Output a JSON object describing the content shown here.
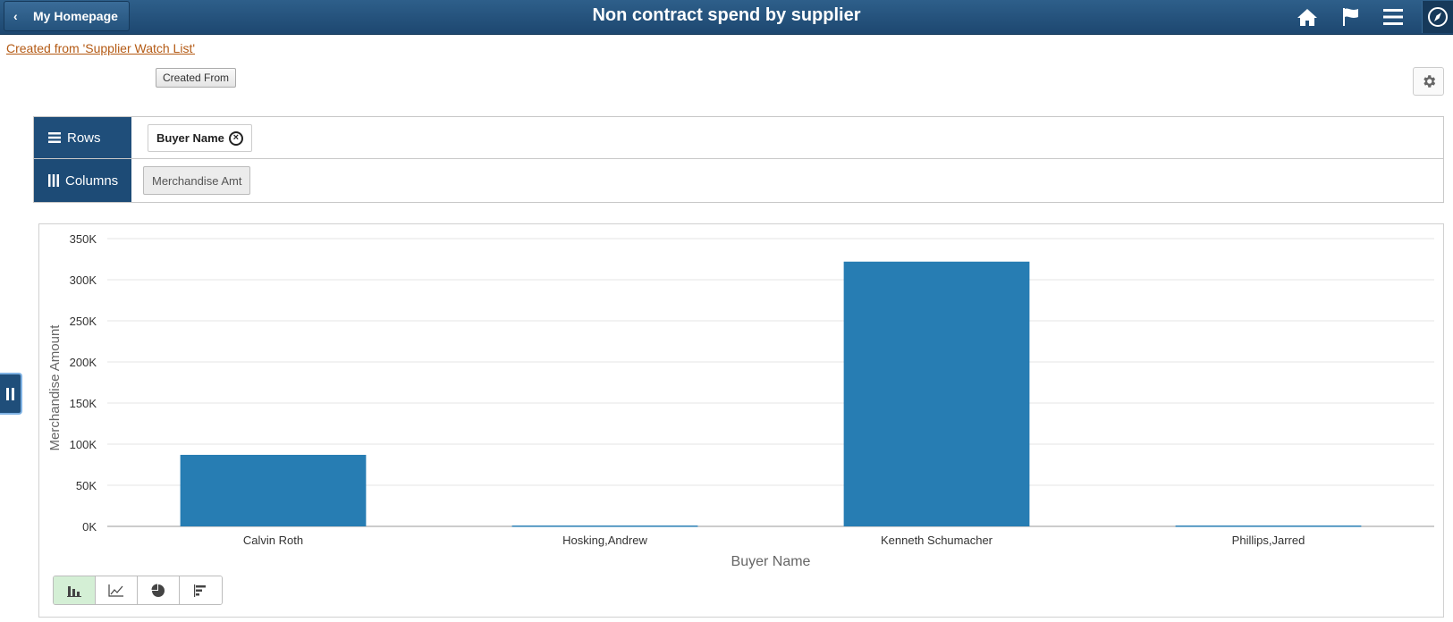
{
  "header": {
    "back_label": "My Homepage",
    "title": "Non contract spend by supplier",
    "icons": [
      "home-icon",
      "flag-icon",
      "menu-icon",
      "compass-icon"
    ]
  },
  "created_from_link": "Created from 'Supplier Watch List'",
  "created_from_button": "Created From",
  "pivot": {
    "rows_label": "Rows",
    "columns_label": "Columns",
    "row_fields": [
      "Buyer Name"
    ],
    "column_fields": [
      "Merchandise Amt"
    ]
  },
  "colors": {
    "bar": "#277db3",
    "header": "#1f4e7a",
    "link": "#b45a14",
    "active_toggle": "#d4efd5"
  },
  "chart_data": {
    "type": "bar",
    "categories": [
      "Calvin Roth",
      "Hosking,Andrew",
      "Kenneth Schumacher",
      "Phillips,Jarred"
    ],
    "values": [
      87000,
      1000,
      322000,
      1000
    ],
    "title": "",
    "xlabel": "Buyer Name",
    "ylabel": "Merchandise Amount",
    "ylim": [
      0,
      350000
    ],
    "yticks": [
      "0K",
      "50K",
      "100K",
      "150K",
      "200K",
      "250K",
      "300K",
      "350K"
    ],
    "grid": true
  },
  "chart_types": [
    "bar-chart-icon",
    "line-chart-icon",
    "pie-chart-icon",
    "horizontal-bar-chart-icon"
  ],
  "active_chart_type": "bar-chart-icon"
}
